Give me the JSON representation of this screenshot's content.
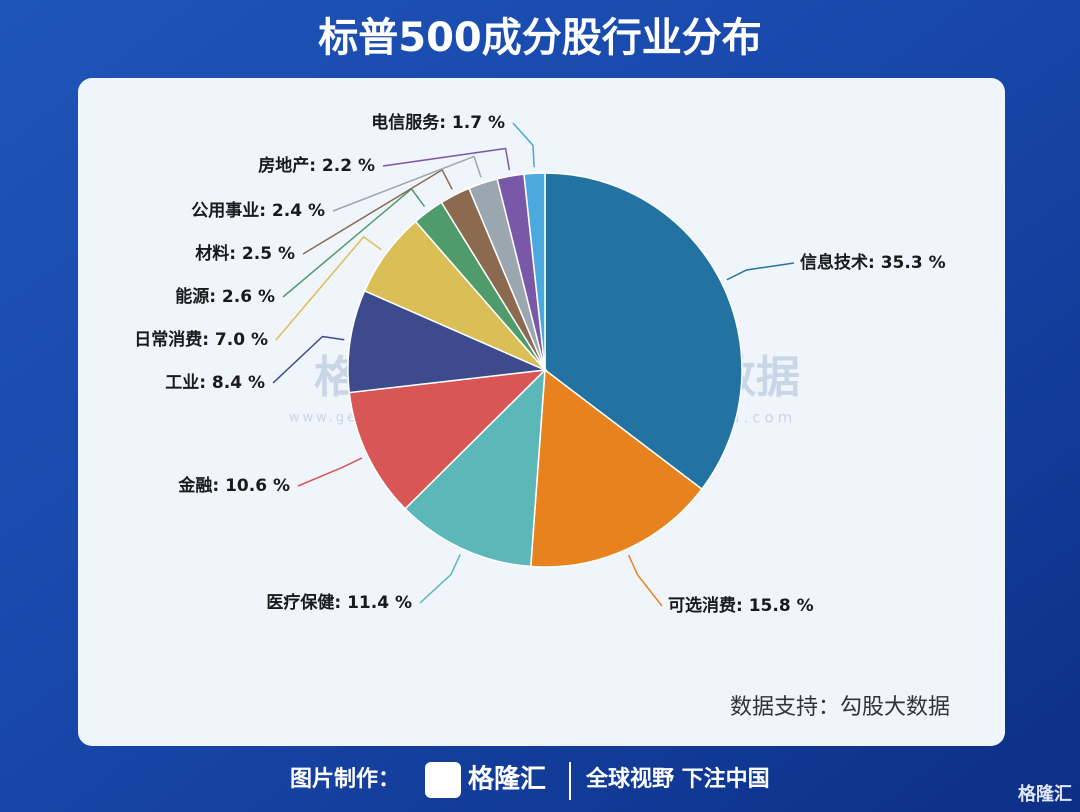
{
  "chart_data": {
    "type": "pie",
    "title": "标普500成分股行业分布",
    "categories": [
      "信息技术",
      "可选消费",
      "医疗保健",
      "金融",
      "工业",
      "日常消费",
      "能源",
      "材料",
      "公用事业",
      "房地产",
      "电信服务"
    ],
    "values": [
      35.3,
      15.8,
      11.4,
      10.6,
      8.4,
      7.0,
      2.6,
      2.5,
      2.4,
      2.2,
      1.7
    ],
    "value_labels": [
      ": 35.3 %",
      ": 15.8 %",
      ": 11.4 %",
      ": 10.6 %",
      ": 8.4 %",
      ": 7.0 %",
      ": 2.6 %",
      ": 2.5 %",
      ": 2.4 %",
      ": 2.2 %",
      ": 1.7 %"
    ],
    "colors": [
      "#2273a2",
      "#e8821e",
      "#5cb7b9",
      "#d95656",
      "#3d4a8b",
      "#d9bf55",
      "#4f9b6b",
      "#8b6a50",
      "#9ba7b0",
      "#7a58a8",
      "#4ba9dd"
    ],
    "source": "数据支持：勾股大数据"
  },
  "watermarks": {
    "left": "格隆汇",
    "left_url": "www.gelonghui.com",
    "right": "勾股大数据",
    "right_url": "www.gogudata.com"
  },
  "footer": {
    "made_by": "图片制作：",
    "brand": "格隆汇",
    "slogan": "全球视野 下注中国",
    "corner": "格隆汇"
  }
}
